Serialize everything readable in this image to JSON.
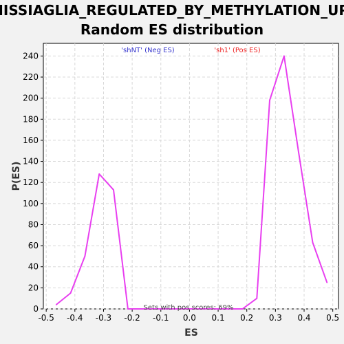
{
  "chart_data": {
    "type": "line",
    "title": [
      "MISSIAGLIA_REGULATED_BY_METHYLATION_UP:",
      "Random ES distribution"
    ],
    "xlabel": "ES",
    "ylabel": "P(ES)",
    "xlim": [
      -0.51,
      0.52
    ],
    "ylim": [
      0,
      252
    ],
    "xticks": [
      -0.5,
      -0.4,
      -0.3,
      -0.2,
      -0.1,
      0.0,
      0.1,
      0.2,
      0.3,
      0.4,
      0.5
    ],
    "xtick_labels": [
      "-0.5",
      "-0.4",
      "-0.3",
      "-0.2",
      "-0.1",
      "0.0",
      "0.1",
      "0.2",
      "0.3",
      "0.4",
      "0.5"
    ],
    "yticks": [
      0,
      20,
      40,
      60,
      80,
      100,
      120,
      140,
      160,
      180,
      200,
      220,
      240
    ],
    "grid": true,
    "series": [
      {
        "color": "#e83ff0",
        "x": [
          -0.465,
          -0.415,
          -0.365,
          -0.315,
          -0.265,
          -0.215,
          -0.165,
          -0.115,
          -0.065,
          -0.015,
          0.035,
          0.085,
          0.135,
          0.185,
          0.235,
          0.28,
          0.33,
          0.38,
          0.43,
          0.48
        ],
        "y": [
          4,
          15,
          50,
          128,
          113,
          0,
          0,
          0,
          0,
          0,
          0,
          0,
          0,
          0,
          10,
          198,
          240,
          150,
          63,
          25
        ]
      }
    ],
    "legend": [
      {
        "text": "'shNT' (Neg ES)",
        "color": "#3333cc"
      },
      {
        "text": "'sh1' (Pos ES)",
        "color": "#ee2222"
      }
    ],
    "annotation": "Sets with pos scores: 69%"
  }
}
